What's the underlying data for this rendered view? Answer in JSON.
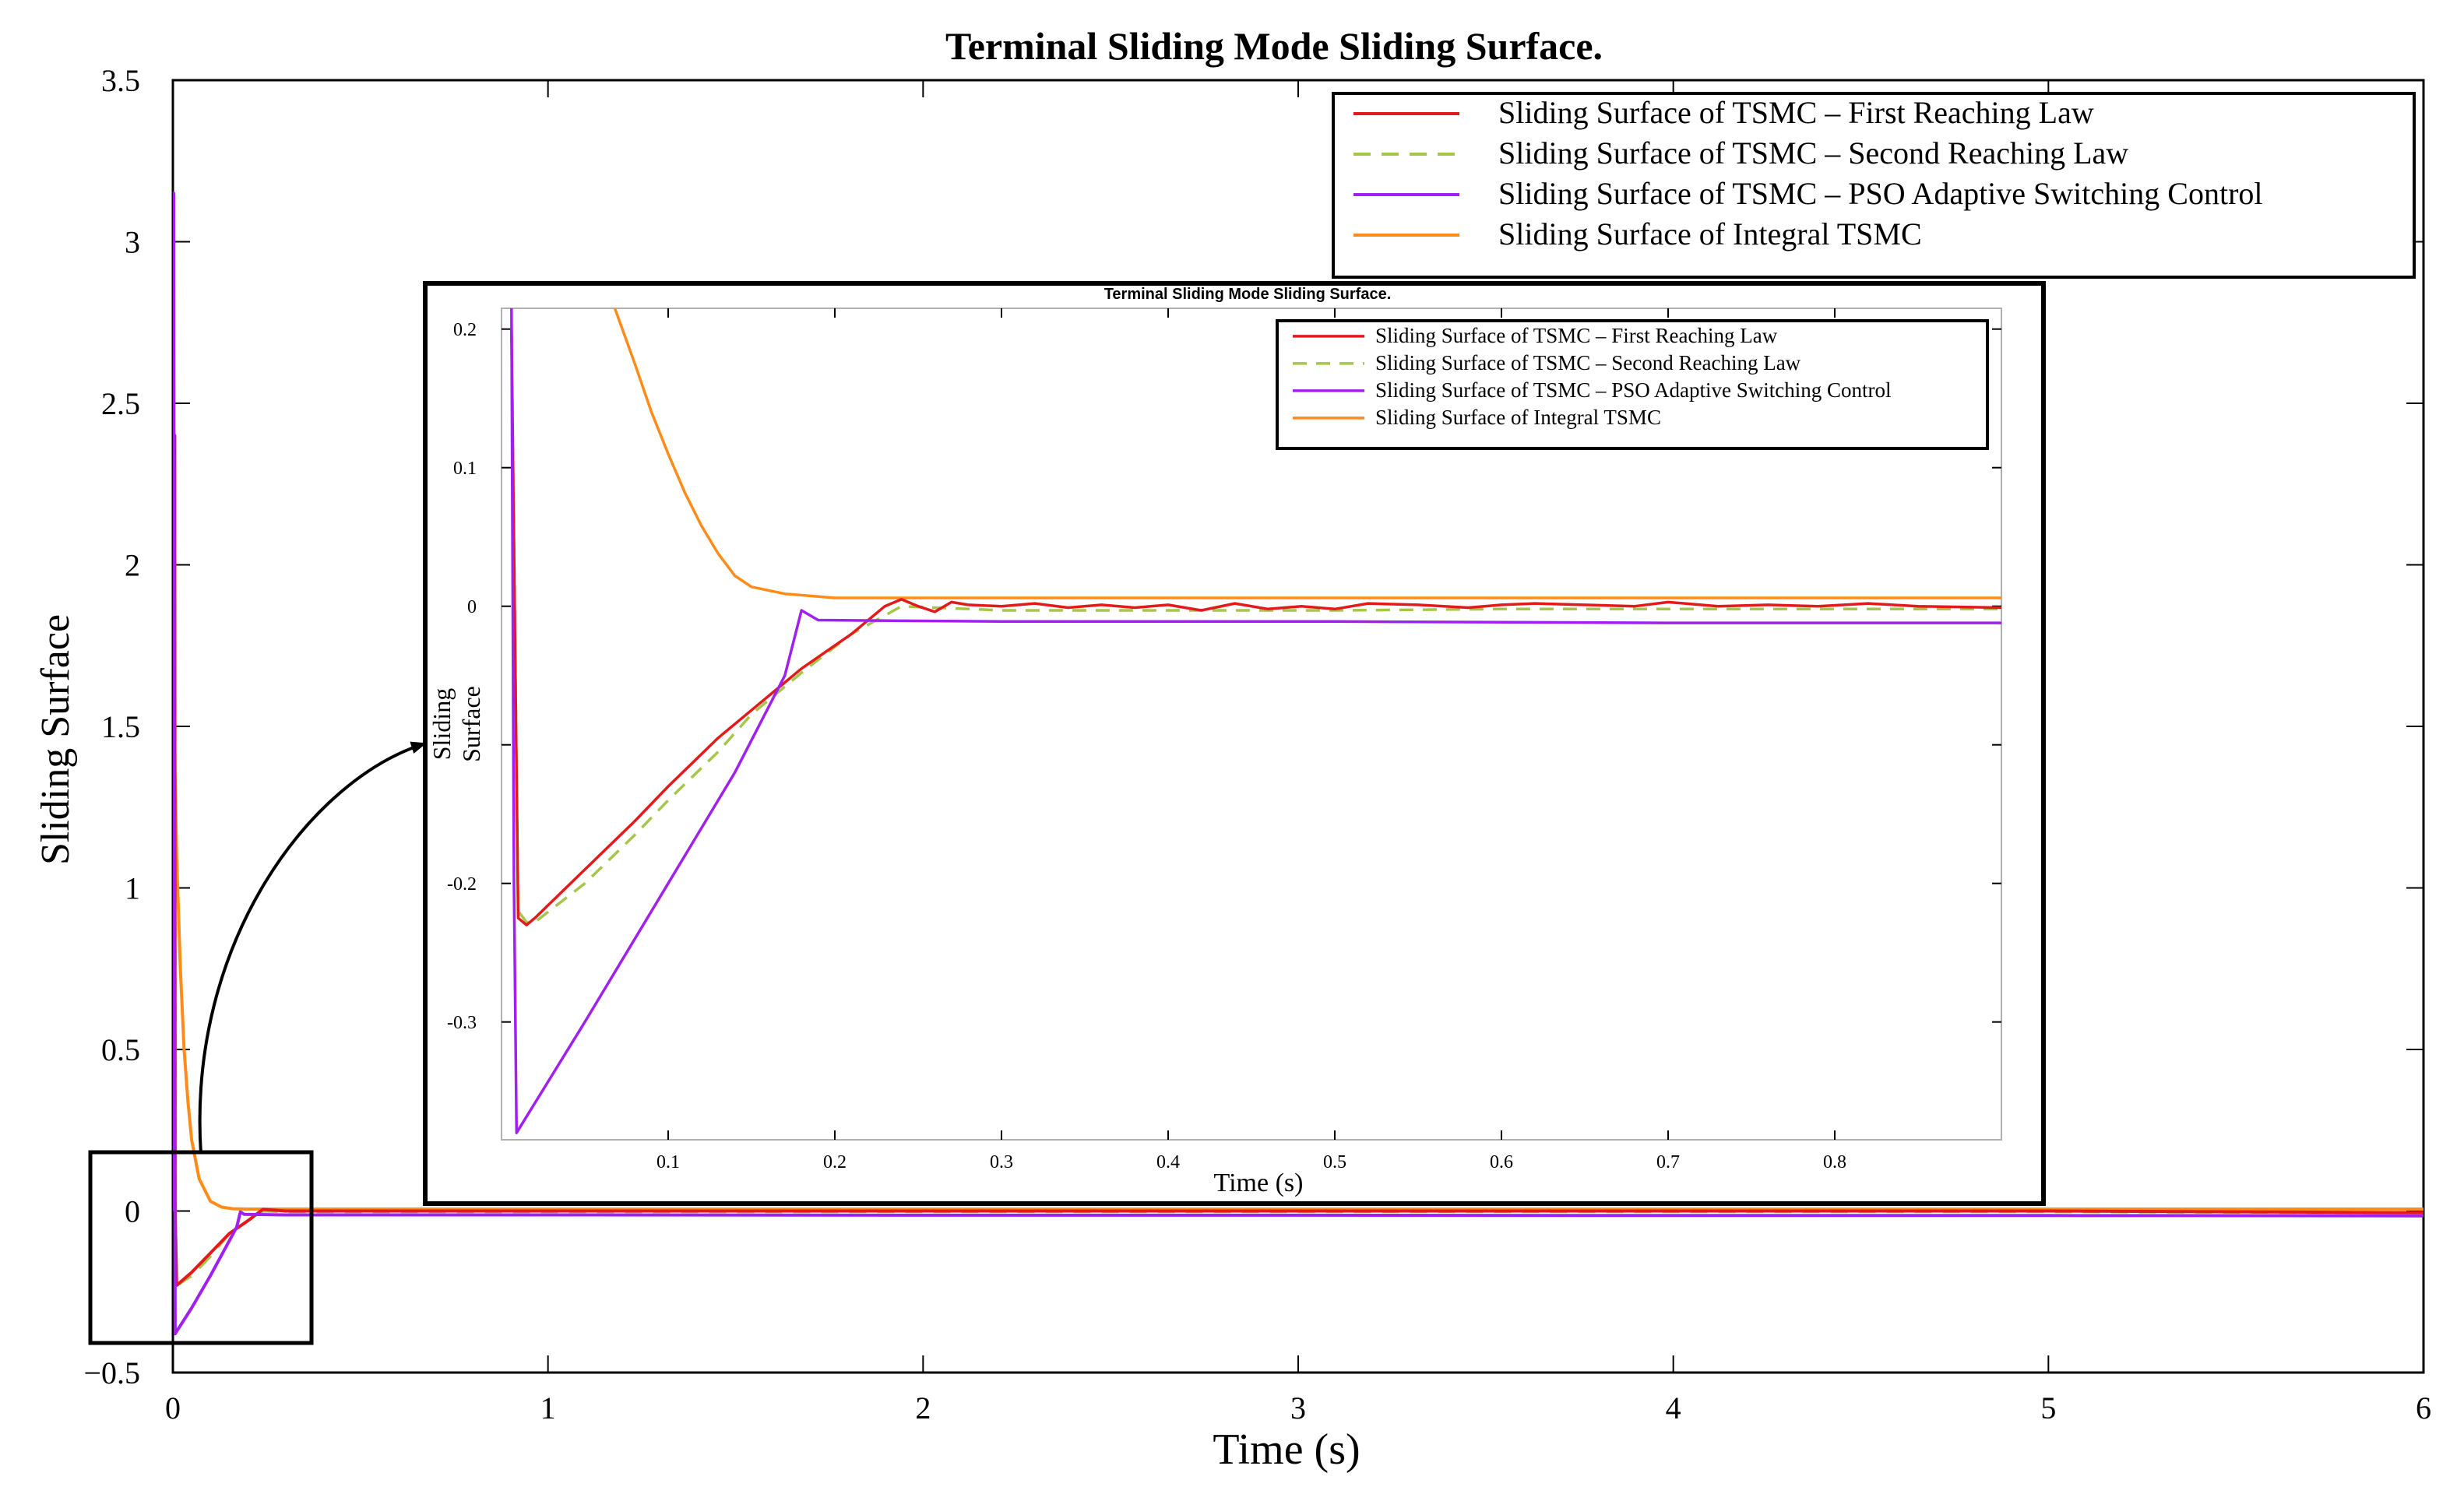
{
  "colors": {
    "first": "#e31a1c",
    "second": "#a6c64a",
    "pso": "#a020f0",
    "integral": "#ff8c1a",
    "axis": "#000000"
  },
  "chart_data": [
    {
      "type": "line",
      "title": "Terminal Sliding Mode Sliding Surface.",
      "xlabel": "Time (s)",
      "ylabel": "Sliding Surface",
      "xlim": [
        0,
        6
      ],
      "ylim": [
        -0.5,
        3.5
      ],
      "xticks": [
        0,
        1,
        2,
        3,
        4,
        5,
        6
      ],
      "xtick_labels": [
        "0",
        "1",
        "2",
        "3",
        "4",
        "5",
        "6"
      ],
      "yticks": [
        -0.5,
        0,
        0.5,
        1,
        1.5,
        2,
        2.5,
        3,
        3.5
      ],
      "ytick_labels": [
        "−0.5",
        "0",
        "0.5",
        "1",
        "1.5",
        "2",
        "2.5",
        "3",
        "3.5"
      ],
      "legend_position": "top-right",
      "series": [
        {
          "name": "Sliding Surface of TSMC – First Reaching Law",
          "color_key": "first",
          "dash": false,
          "x": [
            0,
            0.003,
            0.005,
            0.006,
            0.01,
            0.05,
            0.1,
            0.15,
            0.2,
            0.24,
            0.3,
            1,
            2,
            3,
            4,
            5,
            6
          ],
          "y": [
            0,
            1.0,
            2.4,
            0,
            -0.23,
            -0.19,
            -0.13,
            -0.07,
            -0.03,
            0.005,
            0.0,
            0.0,
            0.0,
            0.0,
            0.0,
            0.0,
            -0.005
          ]
        },
        {
          "name": "Sliding Surface of TSMC – Second Reaching Law",
          "color_key": "second",
          "dash": true,
          "x": [
            0,
            0.003,
            0.005,
            0.006,
            0.01,
            0.05,
            0.1,
            0.15,
            0.2,
            0.24,
            0.3,
            1,
            2,
            3,
            4,
            5,
            6
          ],
          "y": [
            0,
            1.0,
            2.4,
            0,
            -0.23,
            -0.2,
            -0.14,
            -0.07,
            -0.03,
            0.0,
            -0.002,
            -0.002,
            -0.002,
            -0.002,
            -0.002,
            -0.002,
            -0.005
          ]
        },
        {
          "name": "Sliding Surface of TSMC – PSO Adaptive Switching Control",
          "color_key": "pso",
          "dash": false,
          "x": [
            0,
            0.002,
            0.005,
            0.006,
            0.05,
            0.1,
            0.17,
            0.18,
            0.19,
            0.3,
            1,
            2,
            3,
            4,
            5,
            6
          ],
          "y": [
            0,
            3.15,
            0.3,
            -0.38,
            -0.3,
            -0.2,
            -0.05,
            -0.003,
            -0.01,
            -0.012,
            -0.012,
            -0.013,
            -0.013,
            -0.014,
            -0.014,
            -0.015
          ]
        },
        {
          "name": "Sliding Surface of Integral TSMC",
          "color_key": "integral",
          "dash": false,
          "x": [
            0,
            0.005,
            0.01,
            0.02,
            0.03,
            0.04,
            0.05,
            0.07,
            0.1,
            0.13,
            0.16,
            0.2,
            0.3,
            1,
            2,
            3,
            4,
            5,
            6
          ],
          "y": [
            1.6,
            1.4,
            1.1,
            0.75,
            0.5,
            0.34,
            0.22,
            0.1,
            0.03,
            0.012,
            0.007,
            0.006,
            0.006,
            0.006,
            0.006,
            0.006,
            0.006,
            0.006,
            0.006
          ]
        }
      ]
    },
    {
      "type": "line",
      "title": "Terminal Sliding Mode Sliding Surface.",
      "xlabel": "Time (s)",
      "ylabel": "Sliding Surface",
      "xlim": [
        0,
        0.9
      ],
      "ylim": [
        -0.385,
        0.215
      ],
      "xticks": [
        0.1,
        0.2,
        0.3,
        0.4,
        0.5,
        0.6,
        0.7,
        0.8
      ],
      "xtick_labels": [
        "0.1",
        "0.2",
        "0.3",
        "0.4",
        "0.5",
        "0.6",
        "0.7",
        "0.8"
      ],
      "yticks": [
        -0.3,
        -0.2,
        -0.1,
        0,
        0.1,
        0.2
      ],
      "ytick_labels": [
        "-0.3",
        "-0.2",
        "",
        "0",
        "0.1",
        "0.2"
      ],
      "legend_position": "top-right",
      "series": [
        {
          "name": "Sliding Surface of TSMC – First Reaching Law",
          "color_key": "first",
          "dash": false,
          "x": [
            0.006,
            0.01,
            0.015,
            0.02,
            0.05,
            0.08,
            0.1,
            0.13,
            0.15,
            0.18,
            0.21,
            0.23,
            0.24,
            0.25,
            0.26,
            0.27,
            0.28,
            0.3,
            0.32,
            0.34,
            0.36,
            0.38,
            0.4,
            0.42,
            0.44,
            0.46,
            0.48,
            0.5,
            0.52,
            0.55,
            0.58,
            0.6,
            0.62,
            0.65,
            0.68,
            0.7,
            0.73,
            0.76,
            0.79,
            0.82,
            0.85,
            0.9
          ],
          "y": [
            0.2,
            -0.225,
            -0.23,
            -0.225,
            -0.19,
            -0.155,
            -0.13,
            -0.095,
            -0.075,
            -0.045,
            -0.02,
            0.0,
            0.005,
            0.0,
            -0.004,
            0.003,
            0.001,
            0.0,
            0.002,
            -0.001,
            0.001,
            -0.001,
            0.001,
            -0.003,
            0.002,
            -0.002,
            0.0,
            -0.002,
            0.002,
            0.001,
            -0.001,
            0.001,
            0.002,
            0.001,
            0.0,
            0.003,
            0.0,
            0.001,
            0.0,
            0.002,
            0.0,
            -0.001
          ]
        },
        {
          "name": "Sliding Surface of TSMC – Second Reaching Law",
          "color_key": "second",
          "dash": true,
          "x": [
            0.006,
            0.01,
            0.015,
            0.02,
            0.05,
            0.08,
            0.1,
            0.13,
            0.15,
            0.18,
            0.21,
            0.24,
            0.3,
            0.4,
            0.5,
            0.6,
            0.7,
            0.8,
            0.9
          ],
          "y": [
            0.2,
            -0.22,
            -0.228,
            -0.228,
            -0.2,
            -0.165,
            -0.14,
            -0.105,
            -0.078,
            -0.048,
            -0.02,
            0.0,
            -0.003,
            -0.003,
            -0.003,
            -0.002,
            -0.002,
            -0.002,
            -0.002
          ]
        },
        {
          "name": "Sliding Surface of TSMC – PSO Adaptive Switching Control",
          "color_key": "pso",
          "dash": false,
          "x": [
            0.006,
            0.0075,
            0.009,
            0.05,
            0.1,
            0.14,
            0.17,
            0.18,
            0.19,
            0.3,
            0.5,
            0.7,
            0.9
          ],
          "y": [
            0.215,
            -0.2,
            -0.38,
            -0.3,
            -0.2,
            -0.12,
            -0.05,
            -0.003,
            -0.01,
            -0.011,
            -0.011,
            -0.012,
            -0.012
          ]
        },
        {
          "name": "Sliding Surface of Integral TSMC",
          "color_key": "integral",
          "dash": false,
          "x": [
            0.068,
            0.08,
            0.09,
            0.1,
            0.11,
            0.12,
            0.13,
            0.14,
            0.15,
            0.17,
            0.2,
            0.3,
            0.5,
            0.9
          ],
          "y": [
            0.215,
            0.175,
            0.14,
            0.11,
            0.082,
            0.058,
            0.038,
            0.022,
            0.014,
            0.009,
            0.006,
            0.006,
            0.006,
            0.006
          ]
        }
      ]
    }
  ]
}
